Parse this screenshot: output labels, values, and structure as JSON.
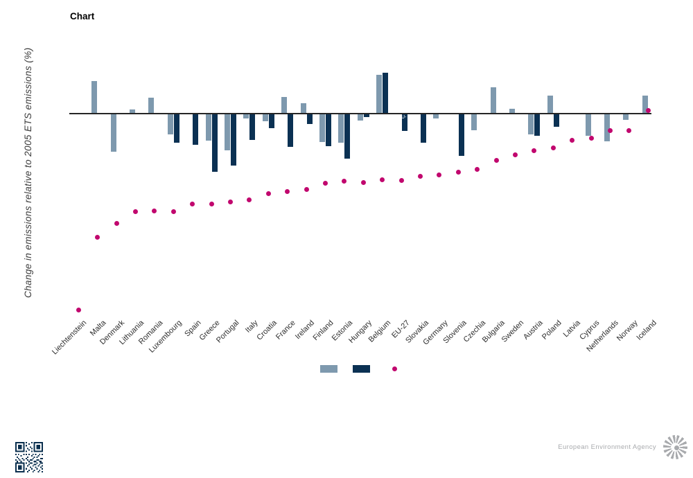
{
  "title": "Chart",
  "y_axis_title": "Change in emissions relative to 2005 ETS emissions (%)",
  "overlay": {
    "eu27_bar_label": "U-"
  },
  "footer": {
    "agency_name": "European Environment Agency"
  },
  "colors": {
    "bar_light": "#7E99AE",
    "bar_dark": "#0B3153",
    "dot": "#C1076E",
    "axis_line": "#262626",
    "label_text": "#2e2e2e",
    "footer_gray": "#a8aaad"
  },
  "legend": {
    "items": [
      {
        "id": "light-blue-bar-swatch",
        "shape": "rect",
        "color": "#7E99AE",
        "label": ""
      },
      {
        "id": "dark-blue-bar-swatch",
        "shape": "rect",
        "color": "#0B3153",
        "label": ""
      },
      {
        "id": "magenta-dot-swatch",
        "shape": "dot",
        "color": "#C1076E",
        "label": ""
      }
    ]
  },
  "chart_data": {
    "type": "bar",
    "title": "Chart",
    "xlabel": "",
    "ylabel": "Change in emissions relative to 2005 ETS emissions (%)",
    "ylim": [
      -105,
      25
    ],
    "grid": false,
    "y_tick_labels_visible": false,
    "legend_text_visible": false,
    "legend_position": "bottom",
    "categories": [
      "Liechtenstein",
      "Malta",
      "Denmark",
      "Lithuania",
      "Romania",
      "Luxembourg",
      "Spain",
      "Greece",
      "Portugal",
      "Italy",
      "Croatia",
      "France",
      "Ireland",
      "Finland",
      "Estonia",
      "Hungary",
      "Belgium",
      "EU-27",
      "Slovakia",
      "Germany",
      "Slovenia",
      "Czechia",
      "Bulgaria",
      "Sweden",
      "Austria",
      "Poland",
      "Latvia",
      "Cyprus",
      "Netherlands",
      "Norway",
      "Iceland"
    ],
    "series": [
      {
        "id": "light-blue-bars",
        "type": "bar",
        "color": "#7E99AE",
        "values": [
          null,
          16.2,
          -19.1,
          1.8,
          7.9,
          -10.5,
          null,
          -13.6,
          -18.5,
          -2.3,
          -3.6,
          8.0,
          5.0,
          -14.4,
          -14.6,
          -3.2,
          19.3,
          null,
          null,
          -2.3,
          null,
          -8.2,
          12.9,
          2.3,
          -10.3,
          8.7,
          null,
          -11.2,
          -13.8,
          -3.0,
          8.7
        ]
      },
      {
        "id": "dark-blue-bars",
        "type": "bar",
        "color": "#0B3153",
        "values": [
          null,
          null,
          null,
          null,
          null,
          -14.7,
          -15.6,
          -29.3,
          -26.2,
          -13.2,
          -7.1,
          -16.8,
          -5.2,
          -16.5,
          -22.6,
          -1.5,
          20.5,
          -8.5,
          -14.6,
          null,
          -21.4,
          null,
          null,
          null,
          -11.2,
          -6.5,
          null,
          null,
          null,
          null,
          null
        ]
      },
      {
        "id": "magenta-dots",
        "type": "scatter",
        "color": "#C1076E",
        "values": [
          -100.0,
          -62.9,
          -56.0,
          -49.8,
          -49.7,
          -49.8,
          -46.0,
          -46.0,
          -45.0,
          -44.0,
          -40.7,
          -39.7,
          -38.7,
          -35.6,
          -34.4,
          -35.0,
          -33.8,
          -34.0,
          -32.0,
          -31.1,
          -29.7,
          -28.3,
          -23.8,
          -20.9,
          -18.9,
          -17.6,
          -13.8,
          -12.4,
          -8.7,
          -8.6,
          1.5
        ]
      }
    ]
  }
}
